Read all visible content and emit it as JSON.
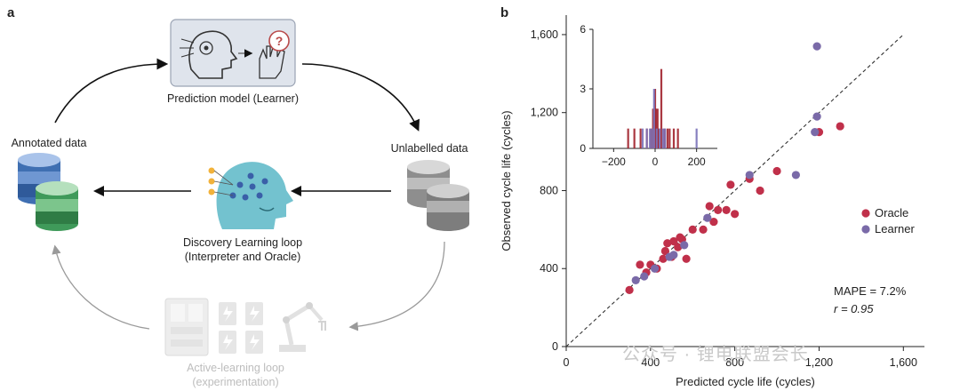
{
  "panel_a": {
    "letter": "a",
    "prediction_model": "Prediction model (Learner)",
    "annotated": "Annotated data",
    "unlabelled": "Unlabelled data",
    "discovery_line1": "Discovery Learning loop",
    "discovery_line2": "(Interpreter and Oracle)",
    "active_line1": "Active-learning loop",
    "active_line2": "(experimentation)"
  },
  "panel_b": {
    "letter": "b",
    "mape": "MAPE = 7.2%",
    "r_value": "r = 0.95"
  },
  "watermark": "公众号 · 锂电联盟会长",
  "colors": {
    "oracle": "#c0304a",
    "learner": "#7a6aa8",
    "hist_oracle": "#a1222c",
    "hist_learner": "#7a72b8"
  },
  "chart_data": [
    {
      "type": "scatter",
      "xlabel": "Predicted cycle life (cycles)",
      "ylabel": "Observed cycle life (cycles)",
      "xlim": [
        0,
        1700
      ],
      "ylim": [
        0,
        1700
      ],
      "xticks": [
        "0",
        "400",
        "800",
        "1,200",
        "1,600"
      ],
      "xtick_values": [
        0,
        400,
        800,
        1200,
        1600
      ],
      "yticks": [
        "0",
        "400",
        "800",
        "1,200",
        "1,600"
      ],
      "ytick_values": [
        0,
        400,
        800,
        1200,
        1600
      ],
      "reference_line": "y = x",
      "legend": [
        "Oracle",
        "Learner"
      ],
      "legend_position": "right",
      "series": [
        {
          "name": "Oracle",
          "points": [
            [
              300,
              290
            ],
            [
              350,
              420
            ],
            [
              380,
              380
            ],
            [
              400,
              420
            ],
            [
              430,
              400
            ],
            [
              460,
              450
            ],
            [
              470,
              490
            ],
            [
              480,
              530
            ],
            [
              500,
              460
            ],
            [
              510,
              540
            ],
            [
              530,
              510
            ],
            [
              540,
              560
            ],
            [
              550,
              550
            ],
            [
              570,
              450
            ],
            [
              600,
              600
            ],
            [
              650,
              600
            ],
            [
              700,
              640
            ],
            [
              680,
              720
            ],
            [
              720,
              700
            ],
            [
              760,
              700
            ],
            [
              780,
              830
            ],
            [
              800,
              680
            ],
            [
              870,
              860
            ],
            [
              920,
              800
            ],
            [
              1000,
              900
            ],
            [
              1200,
              1100
            ],
            [
              1300,
              1130
            ]
          ]
        },
        {
          "name": "Learner",
          "points": [
            [
              330,
              340
            ],
            [
              370,
              360
            ],
            [
              420,
              400
            ],
            [
              490,
              460
            ],
            [
              510,
              470
            ],
            [
              560,
              520
            ],
            [
              670,
              660
            ],
            [
              870,
              880
            ],
            [
              1090,
              880
            ],
            [
              1180,
              1100
            ],
            [
              1190,
              1180
            ],
            [
              1190,
              1540
            ]
          ]
        }
      ]
    },
    {
      "type": "bar",
      "title": "inset histogram of prediction errors",
      "xlim": [
        -300,
        300
      ],
      "ylim": [
        0,
        6
      ],
      "xticks": [
        "−200",
        "0",
        "200"
      ],
      "xtick_values": [
        -200,
        0,
        200
      ],
      "yticks": [
        "0",
        "3",
        "6"
      ],
      "ytick_values": [
        0,
        3,
        6
      ],
      "series": [
        {
          "name": "Oracle",
          "bins": [
            [
              -130,
              1
            ],
            [
              -100,
              1
            ],
            [
              -70,
              1
            ],
            [
              -40,
              1
            ],
            [
              -20,
              1
            ],
            [
              -10,
              2
            ],
            [
              0,
              3
            ],
            [
              5,
              2
            ],
            [
              12,
              2
            ],
            [
              18,
              1
            ],
            [
              30,
              4
            ],
            [
              45,
              1
            ],
            [
              60,
              1
            ],
            [
              70,
              1
            ],
            [
              90,
              1
            ],
            [
              110,
              1
            ]
          ]
        },
        {
          "name": "Learner",
          "bins": [
            [
              -60,
              1
            ],
            [
              -40,
              1
            ],
            [
              -25,
              1
            ],
            [
              -15,
              1
            ],
            [
              -5,
              3
            ],
            [
              8,
              1
            ],
            [
              22,
              1
            ],
            [
              38,
              1
            ],
            [
              48,
              1
            ],
            [
              200,
              1
            ]
          ]
        }
      ]
    }
  ]
}
